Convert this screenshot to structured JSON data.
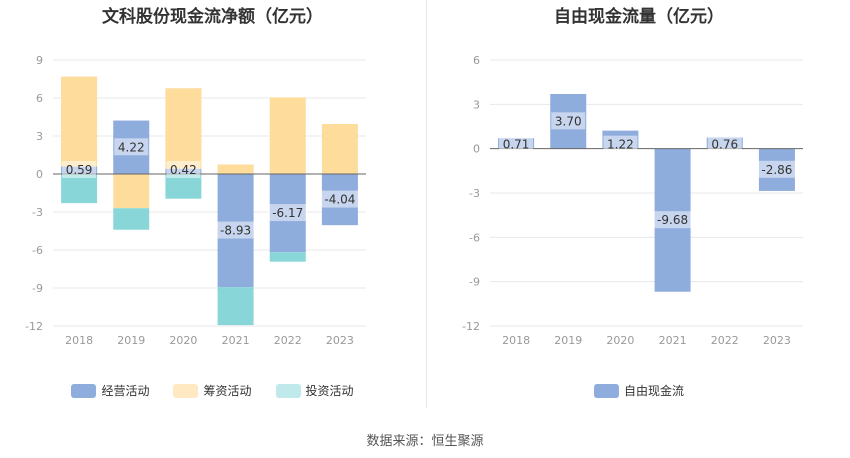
{
  "source": "数据来源：恒生聚源",
  "chart_data": [
    {
      "type": "bar",
      "stacked": true,
      "title": "文科股份现金流净额（亿元）",
      "categories": [
        "2018",
        "2019",
        "2020",
        "2021",
        "2022",
        "2023"
      ],
      "ylim": [
        -12,
        9
      ],
      "yticks": [
        9,
        6,
        3,
        0,
        -3,
        -6,
        -9,
        -12
      ],
      "grid": true,
      "legend_position": "bottom",
      "series": [
        {
          "name": "经营活动",
          "color": "#8eacdc",
          "values": [
            0.59,
            4.22,
            0.42,
            -8.93,
            -6.17,
            -4.04
          ],
          "labels": [
            "0.59",
            "4.22",
            "0.42",
            "-8.93",
            "-6.17",
            "-4.04"
          ]
        },
        {
          "name": "筹资活动",
          "color": "#fedc9b",
          "values": [
            7.1,
            -2.7,
            6.35,
            0.75,
            6.05,
            3.95
          ]
        },
        {
          "name": "投资活动",
          "color": "#89d6d9",
          "values": [
            -2.3,
            -1.7,
            -1.95,
            -3.0,
            -0.75,
            0
          ]
        }
      ]
    },
    {
      "type": "bar",
      "title": "自由现金流量（亿元）",
      "categories": [
        "2018",
        "2019",
        "2020",
        "2021",
        "2022",
        "2023"
      ],
      "ylim": [
        -12,
        6
      ],
      "yticks": [
        6,
        3,
        0,
        -3,
        -6,
        -9,
        -12
      ],
      "grid": true,
      "legend_position": "bottom",
      "series": [
        {
          "name": "自由现金流",
          "color": "#8eacdc",
          "values": [
            0.71,
            3.7,
            1.22,
            -9.68,
            0.76,
            -2.86
          ],
          "labels": [
            "0.71",
            "3.70",
            "1.22",
            "-9.68",
            "0.76",
            "-2.86"
          ]
        }
      ]
    }
  ]
}
